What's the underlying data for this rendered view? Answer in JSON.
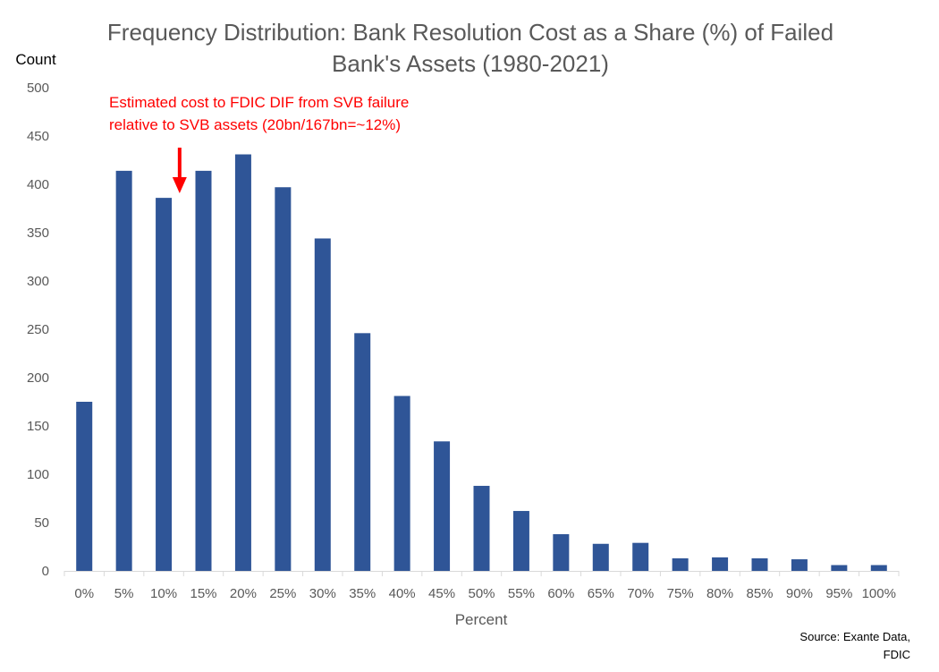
{
  "colors": {
    "bar": "#2f5597",
    "annotation": "#ff0000",
    "axis_line": "#d9d9d9",
    "text": "#595959"
  },
  "chart_data": {
    "type": "bar",
    "title_line1": "Frequency Distribution: Bank Resolution Cost as a Share (%) of Failed",
    "title_line2": "Bank's Assets (1980-2021)",
    "xlabel": "Percent",
    "ylabel": "Count",
    "ylim": [
      0,
      500
    ],
    "yticks": [
      0,
      50,
      100,
      150,
      200,
      250,
      300,
      350,
      400,
      450,
      500
    ],
    "grid": false,
    "legend": "none",
    "categories": [
      "0%",
      "5%",
      "10%",
      "15%",
      "20%",
      "25%",
      "30%",
      "35%",
      "40%",
      "45%",
      "50%",
      "55%",
      "60%",
      "65%",
      "70%",
      "75%",
      "80%",
      "85%",
      "90%",
      "95%",
      "100%"
    ],
    "values": [
      175,
      414,
      386,
      414,
      431,
      397,
      344,
      246,
      181,
      134,
      88,
      62,
      38,
      28,
      29,
      13,
      14,
      13,
      12,
      6,
      6
    ],
    "annotation": {
      "line1": "Estimated cost to FDIC DIF from SVB failure",
      "line2": "relative to SVB assets (20bn/167bn=~12%)",
      "arrow_x_value": 12
    },
    "source_line1": "Source:  Exante Data,",
    "source_line2": "FDIC"
  }
}
